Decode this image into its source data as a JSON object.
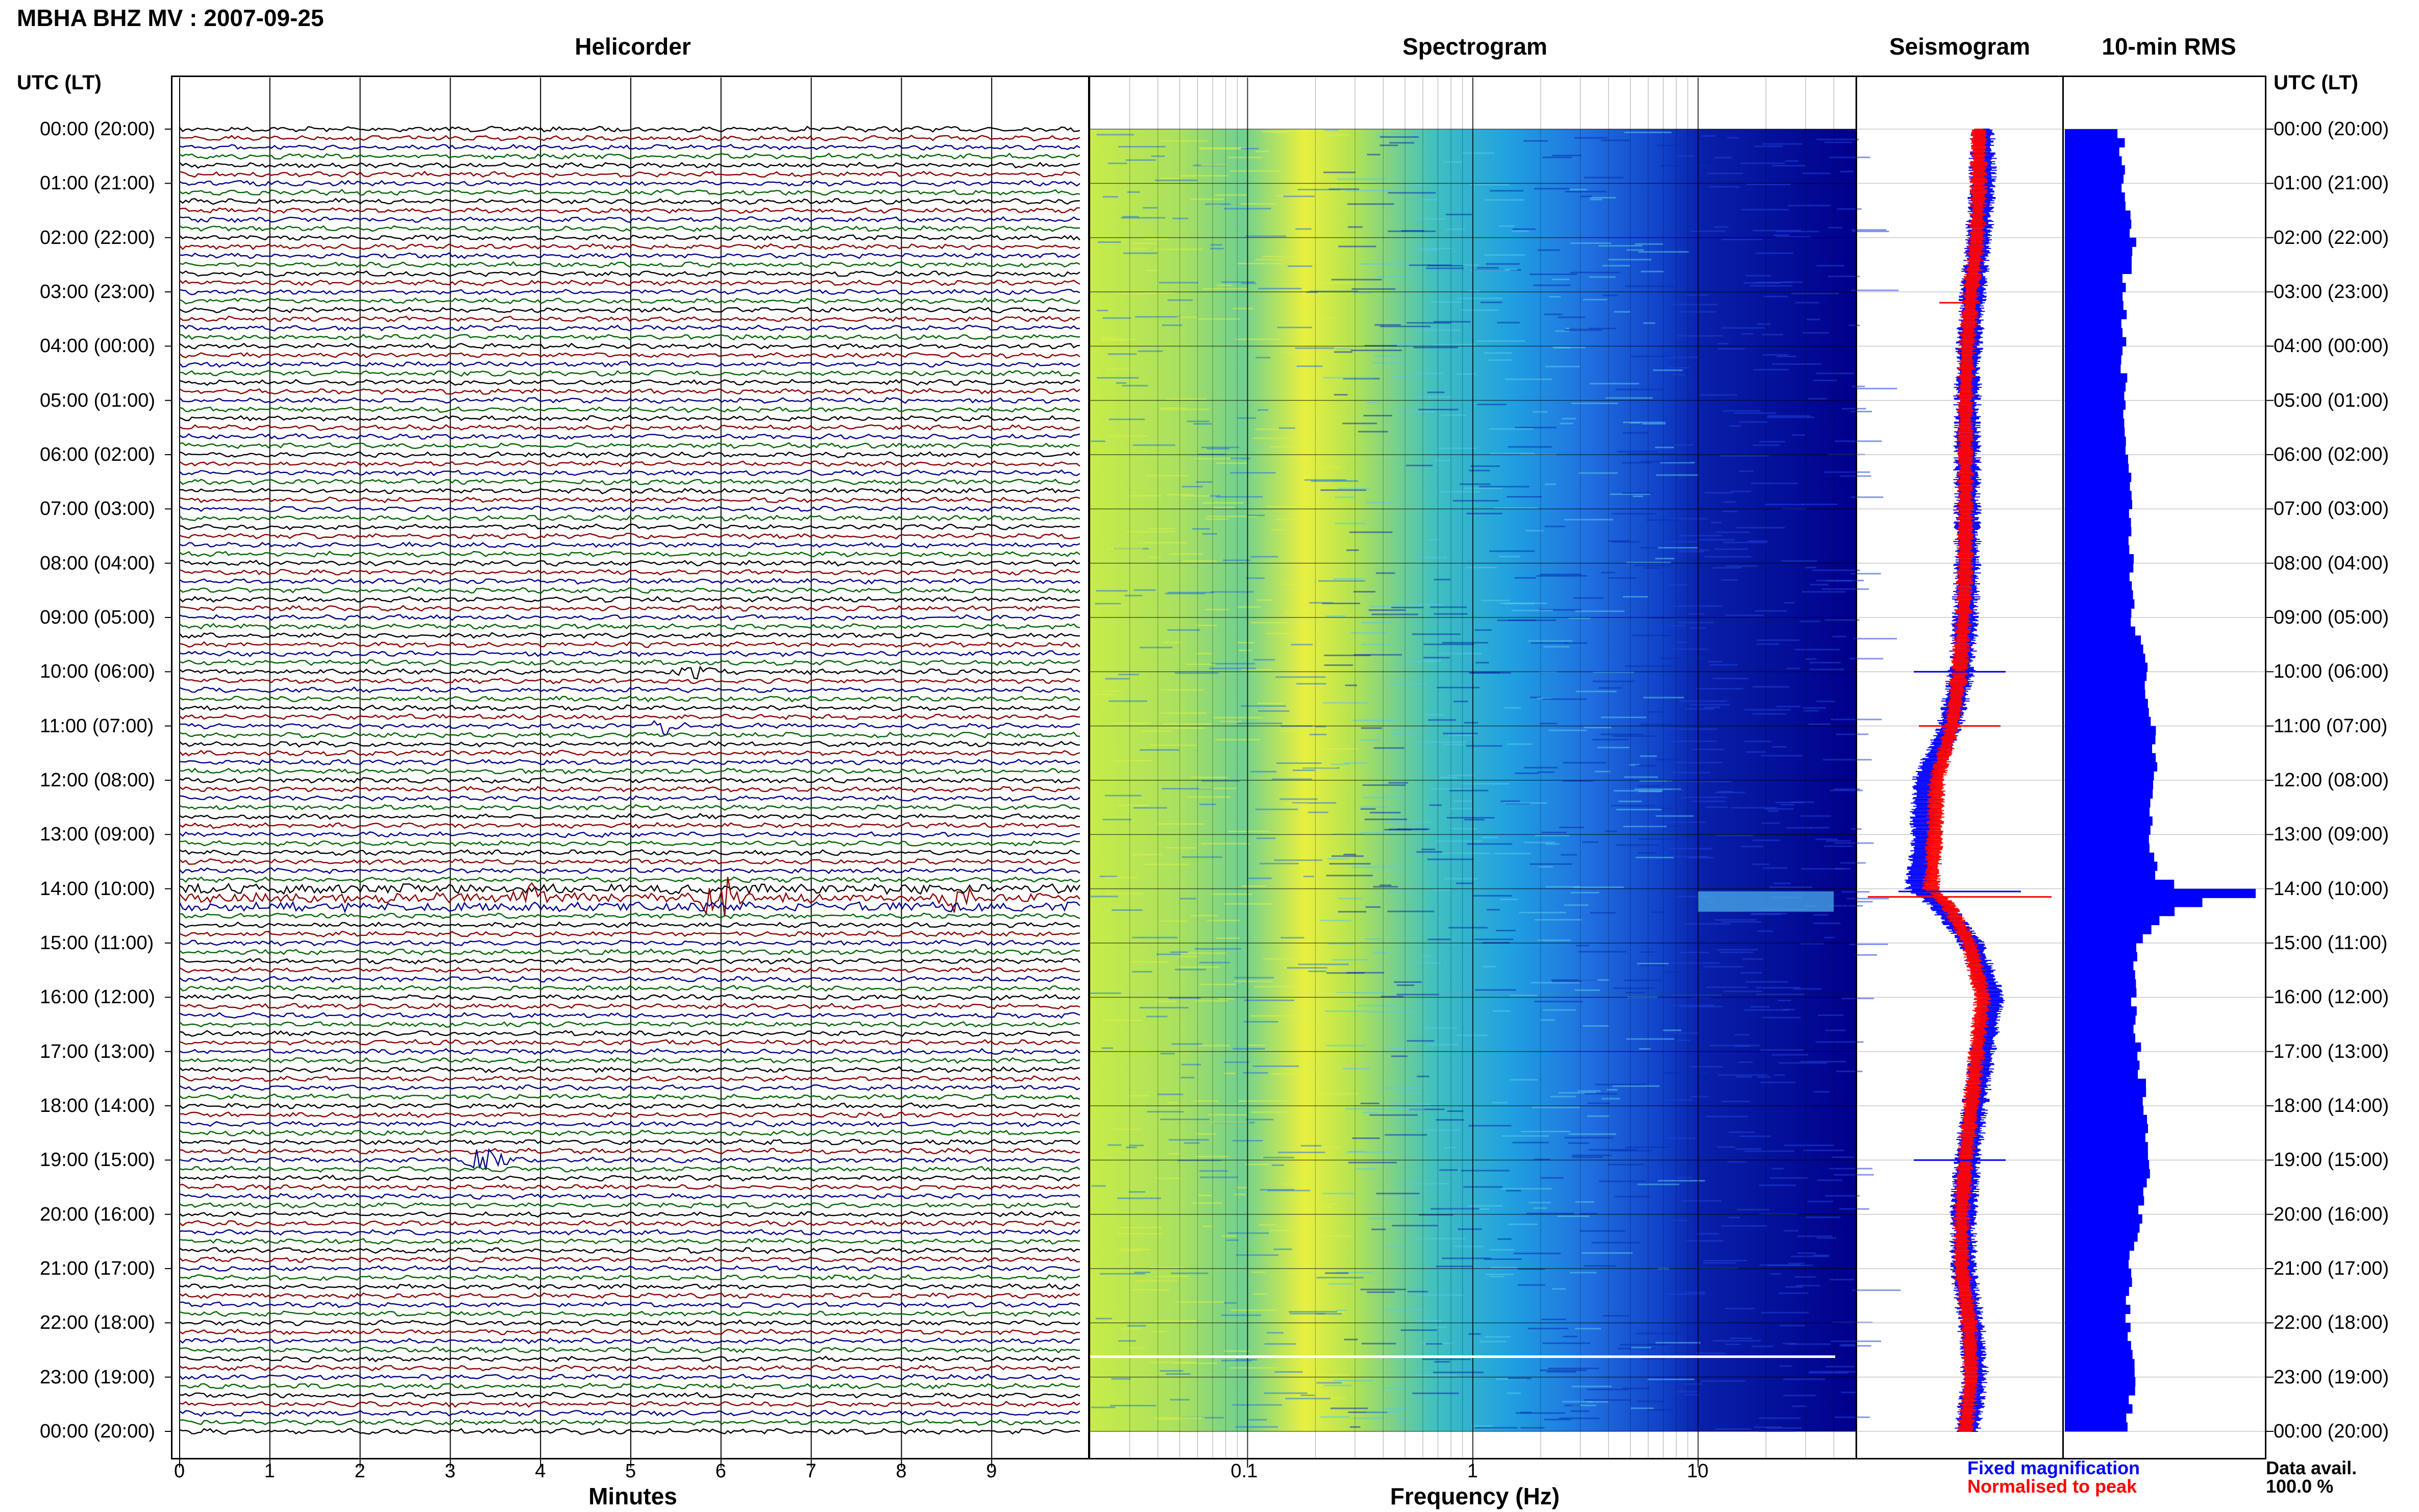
{
  "title": "MBHA BHZ MV : 2007-09-25",
  "panels": {
    "helicorder": "Helicorder",
    "spectrogram": "Spectrogram",
    "seismogram": "Seismogram",
    "rms": "10-min RMS"
  },
  "utc_label_left": "UTC (LT)",
  "utc_label_right": "UTC (LT)",
  "time_labels": [
    "00:00 (20:00)",
    "01:00 (21:00)",
    "02:00 (22:00)",
    "03:00 (23:00)",
    "04:00 (00:00)",
    "05:00 (01:00)",
    "06:00 (02:00)",
    "07:00 (03:00)",
    "08:00 (04:00)",
    "09:00 (05:00)",
    "10:00 (06:00)",
    "11:00 (07:00)",
    "12:00 (08:00)",
    "13:00 (09:00)",
    "14:00 (10:00)",
    "15:00 (11:00)",
    "16:00 (12:00)",
    "17:00 (13:00)",
    "18:00 (14:00)",
    "19:00 (15:00)",
    "20:00 (16:00)",
    "21:00 (17:00)",
    "22:00 (18:00)",
    "23:00 (19:00)",
    "00:00 (20:00)"
  ],
  "x_axis": {
    "minutes_title": "Minutes",
    "minutes_ticks": [
      "0",
      "1",
      "2",
      "3",
      "4",
      "5",
      "6",
      "7",
      "8",
      "9"
    ],
    "frequency_title": "Frequency (Hz)",
    "frequency_ticks": [
      "0.1",
      "1",
      "10"
    ]
  },
  "legend": {
    "fixed": "Fixed magnification",
    "normalised": "Normalised to peak",
    "fixed_color": "#0000ff",
    "normalised_color": "#ff0000",
    "data_avail_label": "Data avail.",
    "data_avail_value": "100.0 %"
  },
  "colors": {
    "trace_cycle": [
      "#000000",
      "#8b0000",
      "#00008b",
      "#006400"
    ],
    "rms_bar": "#0000ff",
    "spectrogram_low": "#e8f040",
    "spectrogram_high": "#00008b"
  },
  "chart_data": [
    {
      "type": "line",
      "panel": "helicorder",
      "title": "Helicorder",
      "xlabel": "Minutes",
      "xlim": [
        0,
        10
      ],
      "rows_per_hour": 6,
      "hours": 24,
      "events": [
        {
          "hour": 14.1,
          "minute": 6.0,
          "amplitude": "large"
        },
        {
          "hour": 14.1,
          "minute": 3.9,
          "amplitude": "medium"
        },
        {
          "hour": 14.1,
          "minute": 8.6,
          "amplitude": "medium"
        },
        {
          "hour": 19.0,
          "minute": 3.4,
          "amplitude": "medium"
        },
        {
          "hour": 11.0,
          "minute": 5.4,
          "amplitude": "small"
        },
        {
          "hour": 10.0,
          "minute": 5.7,
          "amplitude": "small"
        }
      ]
    },
    {
      "type": "heatmap",
      "panel": "spectrogram",
      "title": "Spectrogram",
      "xlabel": "Frequency (Hz)",
      "xscale": "log",
      "xlim": [
        0.02,
        50
      ]
    },
    {
      "type": "line",
      "panel": "seismogram",
      "title": "Seismogram",
      "series": [
        {
          "name": "Fixed magnification",
          "hours": [
            0,
            1,
            2,
            3,
            4,
            5,
            6,
            7,
            8,
            9,
            10,
            11,
            12,
            13,
            14,
            14.3,
            15,
            16,
            17,
            18,
            19,
            20,
            21,
            22,
            23,
            24
          ],
          "offset": [
            0.6,
            0.6,
            0.5,
            0.35,
            0.25,
            0.2,
            0.2,
            0.2,
            0.2,
            0.15,
            0.05,
            -0.25,
            -0.9,
            -0.95,
            -1.1,
            -0.5,
            0.3,
            0.85,
            0.6,
            0.4,
            0.2,
            0.1,
            0.1,
            0.3,
            0.4,
            0.2
          ]
        },
        {
          "name": "Normalised to peak",
          "hours": [
            0,
            1,
            2,
            3,
            4,
            5,
            6,
            7,
            8,
            9,
            10,
            11,
            12,
            13,
            14,
            14.3,
            15,
            16,
            17,
            18,
            19,
            20,
            21,
            22,
            23,
            24
          ],
          "offset": [
            0.5,
            0.5,
            0.45,
            0.3,
            0.2,
            0.15,
            0.15,
            0.15,
            0.15,
            0.1,
            0.0,
            -0.2,
            -0.6,
            -0.65,
            -0.75,
            -0.3,
            0.25,
            0.6,
            0.45,
            0.3,
            0.15,
            0.05,
            0.05,
            0.25,
            0.3,
            0.15
          ]
        }
      ]
    },
    {
      "type": "bar",
      "panel": "rms",
      "title": "10-min RMS",
      "orientation": "horizontal",
      "hours_profile": [
        0,
        1,
        2,
        3,
        4,
        5,
        6,
        7,
        8,
        9,
        10,
        11,
        12,
        13,
        13.8,
        14.0,
        14.2,
        14.4,
        14.6,
        15,
        16,
        17,
        18,
        19,
        20,
        21,
        22,
        23,
        24
      ],
      "rms_profile": [
        0.29,
        0.29,
        0.35,
        0.3,
        0.3,
        0.31,
        0.32,
        0.33,
        0.34,
        0.36,
        0.42,
        0.45,
        0.46,
        0.44,
        0.48,
        1.0,
        0.65,
        0.55,
        0.45,
        0.38,
        0.36,
        0.38,
        0.42,
        0.43,
        0.38,
        0.34,
        0.33,
        0.35,
        0.32
      ],
      "xlim": [
        0,
        1
      ]
    }
  ]
}
